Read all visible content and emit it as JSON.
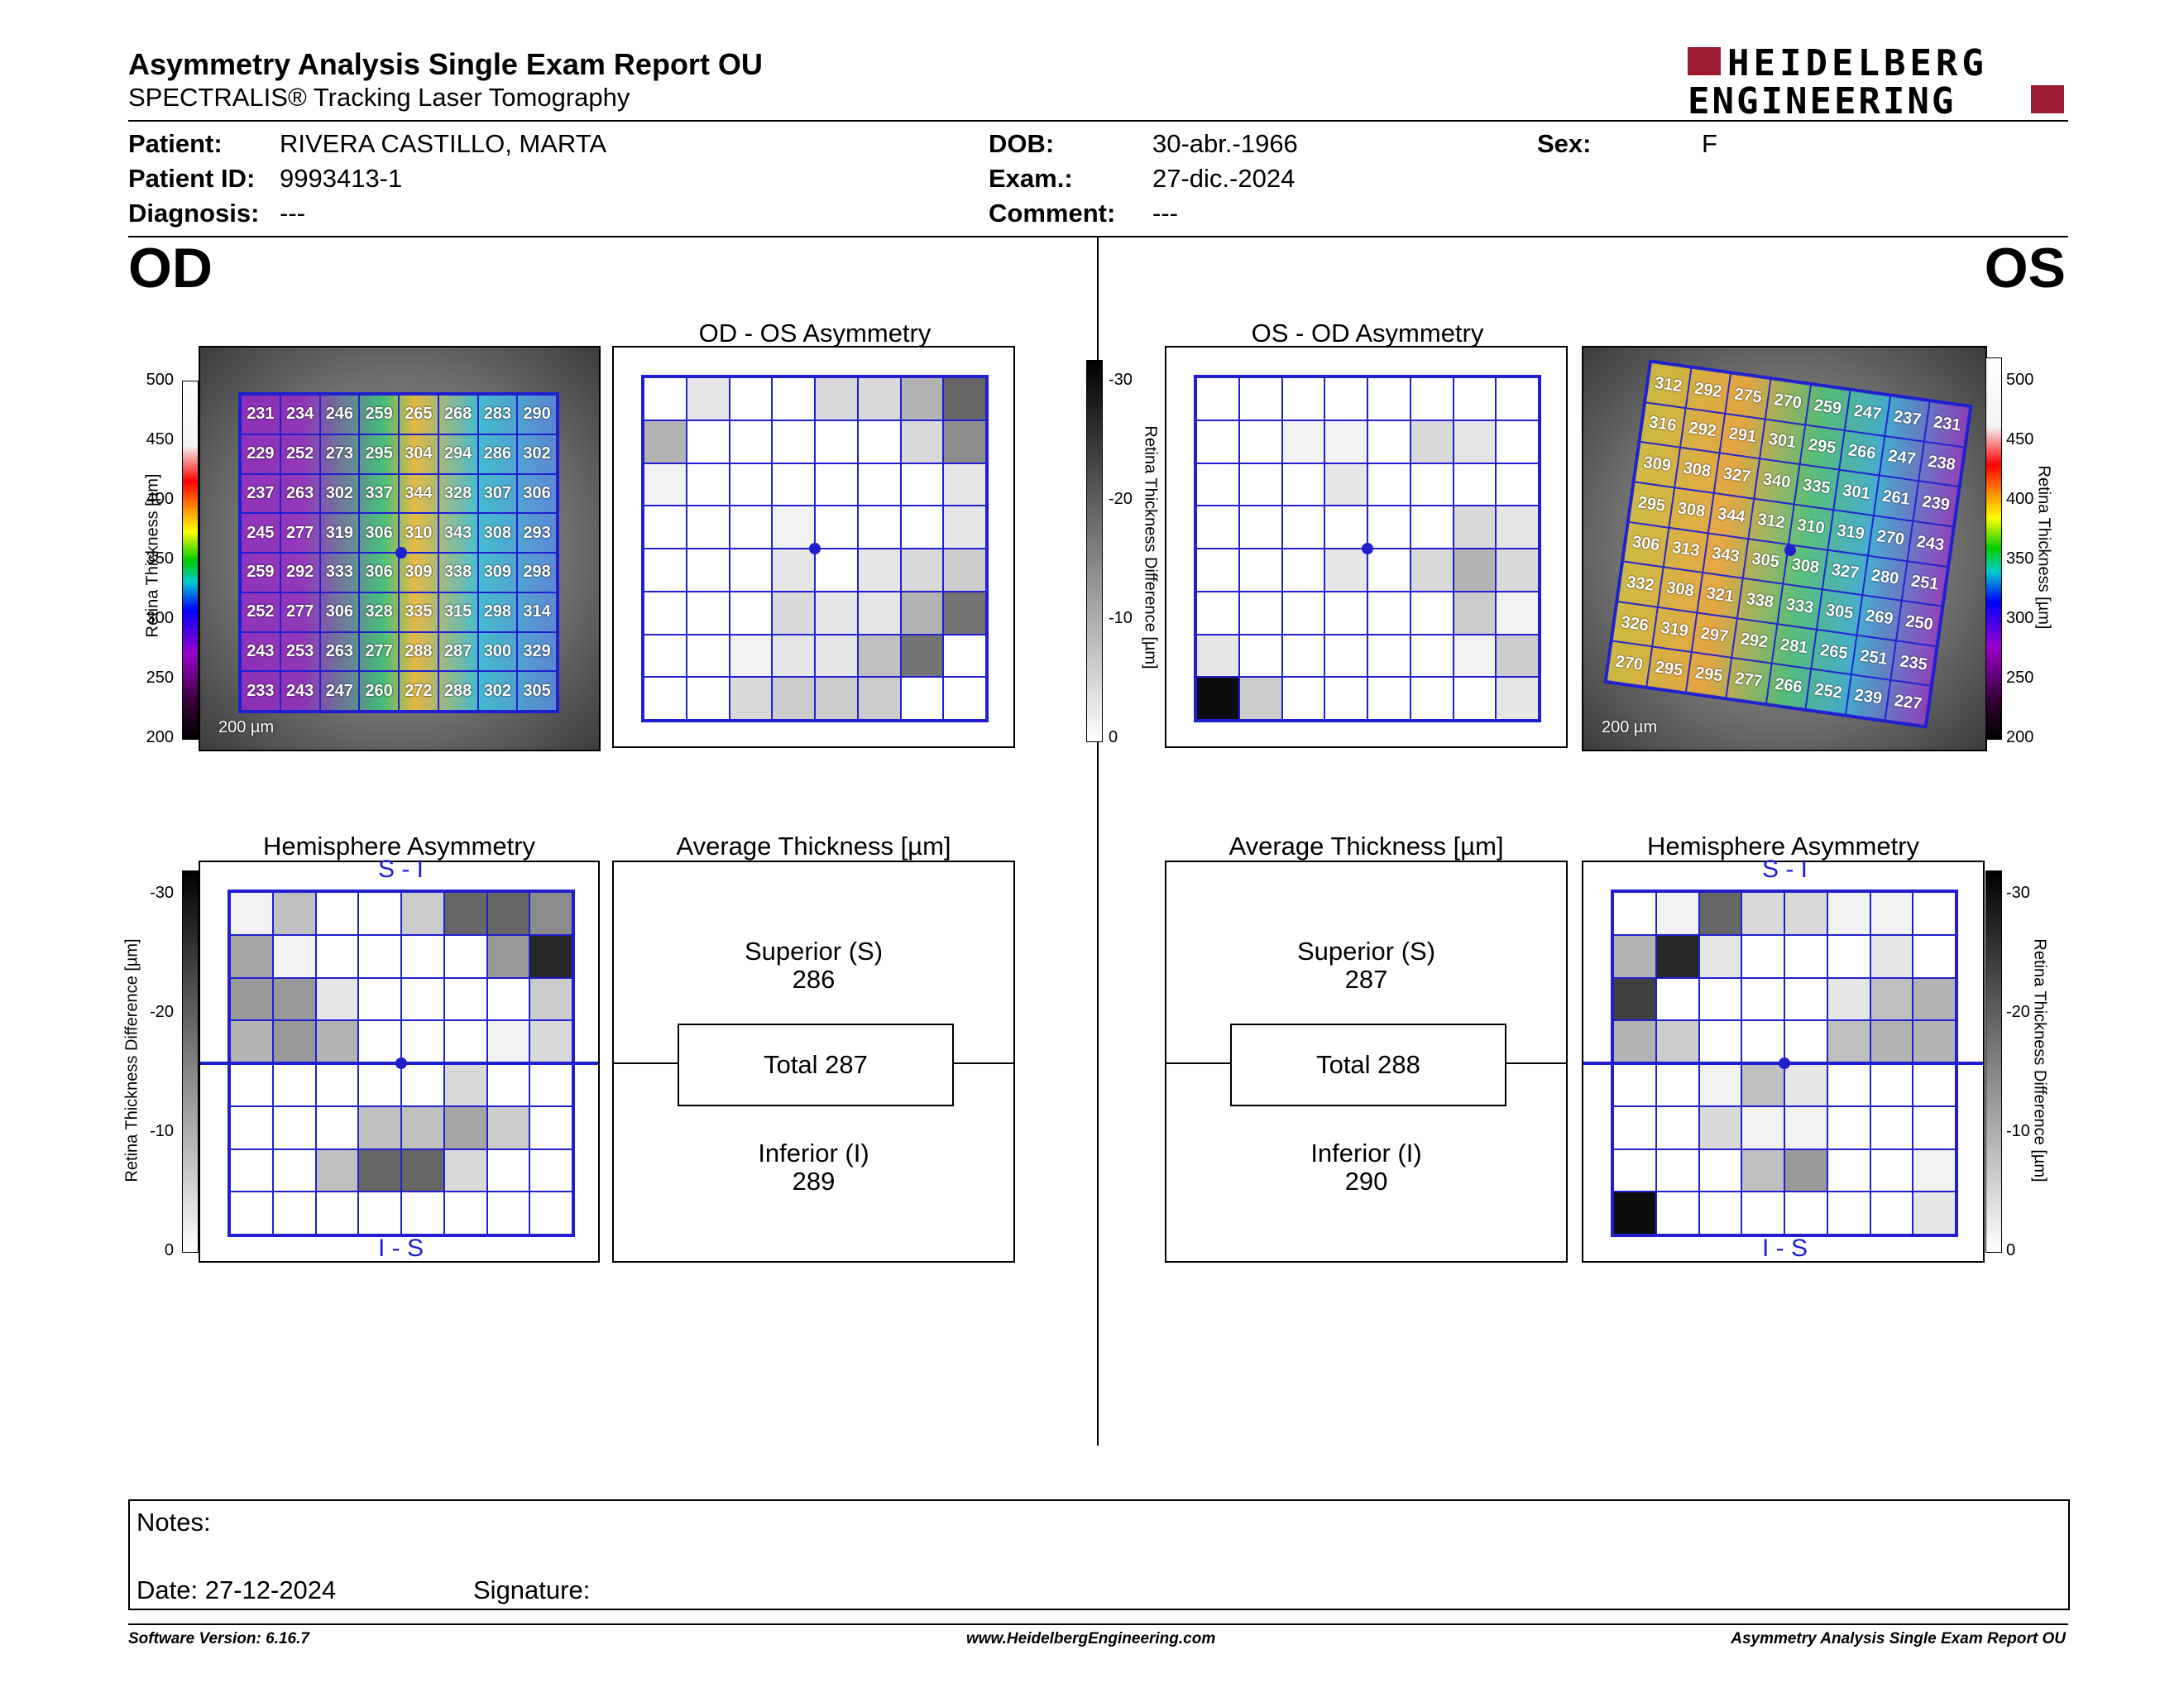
{
  "header": {
    "title": "Asymmetry Analysis Single Exam Report OU",
    "subtitle": "SPECTRALIS® Tracking Laser Tomography",
    "logo_line1": "HEIDELBERG",
    "logo_line2": "ENGINEERING",
    "brand_color": "#9b1b30"
  },
  "patient": {
    "patient_label": "Patient:",
    "patient_value": "RIVERA CASTILLO, MARTA",
    "id_label": "Patient ID:",
    "id_value": "9993413-1",
    "diagnosis_label": "Diagnosis:",
    "diagnosis_value": "---",
    "dob_label": "DOB:",
    "dob_value": "30-abr.-1966",
    "exam_label": "Exam.:",
    "exam_value": "27-dic.-2024",
    "comment_label": "Comment:",
    "comment_value": "---",
    "sex_label": "Sex:",
    "sex_value": "F"
  },
  "od": {
    "label": "OD",
    "asym_title": "OD - OS Asymmetry",
    "hemi_title": "Hemisphere Asymmetry",
    "avg_title": "Average Thickness [µm]",
    "si": "S - I",
    "is": "I - S",
    "superior_label": "Superior (S)",
    "superior_value": "286",
    "total": "Total 287",
    "inferior_label": "Inferior (I)",
    "inferior_value": "289",
    "scale": "200 µm",
    "thickness": [
      [
        231,
        234,
        246,
        259,
        265,
        268,
        283,
        290
      ],
      [
        229,
        252,
        273,
        295,
        304,
        294,
        286,
        302
      ],
      [
        237,
        263,
        302,
        337,
        344,
        328,
        307,
        306
      ],
      [
        245,
        277,
        319,
        306,
        310,
        343,
        308,
        293
      ],
      [
        259,
        292,
        333,
        306,
        309,
        338,
        309,
        298
      ],
      [
        252,
        277,
        306,
        328,
        335,
        315,
        298,
        314
      ],
      [
        243,
        253,
        263,
        277,
        288,
        287,
        300,
        329
      ],
      [
        233,
        243,
        247,
        260,
        272,
        288,
        302,
        305
      ]
    ],
    "asym_levels": [
      [
        0,
        0.1,
        0,
        0,
        0.15,
        0.15,
        0.3,
        0.6
      ],
      [
        0.3,
        0,
        0,
        0,
        0,
        0,
        0.15,
        0.45
      ],
      [
        0.05,
        0,
        0,
        0,
        0,
        0,
        0,
        0.1
      ],
      [
        0,
        0,
        0,
        0.05,
        0,
        0,
        0,
        0.1
      ],
      [
        0,
        0,
        0,
        0.1,
        0,
        0.1,
        0.15,
        0.2
      ],
      [
        0,
        0,
        0,
        0.15,
        0.1,
        0.1,
        0.3,
        0.55
      ],
      [
        0,
        0,
        0.05,
        0.1,
        0.1,
        0.25,
        0.55,
        0
      ],
      [
        0,
        0,
        0.15,
        0.2,
        0.2,
        0.2,
        0,
        0
      ]
    ],
    "hemi_levels": [
      [
        0.05,
        0.25,
        0,
        0,
        0.2,
        0.6,
        0.6,
        0.45
      ],
      [
        0.35,
        0.05,
        0,
        0,
        0,
        0,
        0.4,
        0.85
      ],
      [
        0.4,
        0.4,
        0.1,
        0,
        0,
        0,
        0,
        0.2
      ],
      [
        0.3,
        0.4,
        0.3,
        0,
        0,
        0,
        0.05,
        0.15
      ],
      [
        0,
        0,
        0,
        0,
        0,
        0.15,
        0,
        0
      ],
      [
        0,
        0,
        0,
        0.25,
        0.25,
        0.35,
        0.2,
        0
      ],
      [
        0,
        0,
        0.25,
        0.6,
        0.6,
        0.15,
        0,
        0
      ],
      [
        0,
        0,
        0,
        0,
        0,
        0,
        0,
        0
      ]
    ]
  },
  "os": {
    "label": "OS",
    "asym_title": "OS - OD Asymmetry",
    "hemi_title": "Hemisphere Asymmetry",
    "avg_title": "Average Thickness [µm]",
    "si": "S - I",
    "is": "I - S",
    "superior_label": "Superior (S)",
    "superior_value": "287",
    "total": "Total 288",
    "inferior_label": "Inferior (I)",
    "inferior_value": "290",
    "scale": "200 µm",
    "thickness": [
      [
        312,
        292,
        275,
        270,
        259,
        247,
        237,
        231
      ],
      [
        316,
        292,
        291,
        301,
        295,
        266,
        247,
        238
      ],
      [
        309,
        308,
        327,
        340,
        335,
        301,
        261,
        239
      ],
      [
        295,
        308,
        344,
        312,
        310,
        319,
        270,
        243
      ],
      [
        306,
        313,
        343,
        305,
        308,
        327,
        280,
        251
      ],
      [
        332,
        308,
        321,
        338,
        333,
        305,
        269,
        250
      ],
      [
        326,
        319,
        297,
        292,
        281,
        265,
        251,
        235
      ],
      [
        270,
        295,
        295,
        277,
        266,
        252,
        239,
        227
      ]
    ],
    "asym_levels": [
      [
        0,
        0,
        0,
        0,
        0,
        0,
        0,
        0
      ],
      [
        0,
        0,
        0.05,
        0.05,
        0,
        0.15,
        0.1,
        0
      ],
      [
        0,
        0,
        0,
        0.1,
        0,
        0,
        0,
        0
      ],
      [
        0,
        0,
        0,
        0,
        0,
        0,
        0.15,
        0.1
      ],
      [
        0,
        0,
        0,
        0.1,
        0,
        0.15,
        0.3,
        0.15
      ],
      [
        0,
        0,
        0,
        0,
        0,
        0,
        0.2,
        0.05
      ],
      [
        0.1,
        0,
        0,
        0,
        0,
        0,
        0.05,
        0.2
      ],
      [
        0.95,
        0.2,
        0,
        0,
        0,
        0,
        0,
        0.1
      ]
    ],
    "hemi_levels": [
      [
        0,
        0.05,
        0.6,
        0.15,
        0.15,
        0.05,
        0.05,
        0
      ],
      [
        0.3,
        0.85,
        0.1,
        0,
        0,
        0,
        0.1,
        0
      ],
      [
        0.75,
        0,
        0,
        0,
        0,
        0.1,
        0.25,
        0.3
      ],
      [
        0.3,
        0.2,
        0,
        0,
        0,
        0.25,
        0.3,
        0.3
      ],
      [
        0,
        0,
        0.05,
        0.25,
        0.1,
        0,
        0,
        0
      ],
      [
        0,
        0,
        0.15,
        0.05,
        0.05,
        0,
        0,
        0
      ],
      [
        0,
        0,
        0,
        0.25,
        0.4,
        0,
        0,
        0.05
      ],
      [
        0.95,
        0,
        0,
        0,
        0,
        0,
        0,
        0.1
      ]
    ]
  },
  "axes": {
    "thickness_label": "Retina Thickness [µm]",
    "thickness_ticks": [
      "500",
      "450",
      "400",
      "350",
      "300",
      "250",
      "200"
    ],
    "diff_label": "Retina Thickness Difference [µm]",
    "diff_ticks": [
      "-30",
      "-20",
      "-10",
      "0"
    ]
  },
  "notes": {
    "notes_label": "Notes:",
    "date_label": "Date: 27-12-2024",
    "signature_label": "Signature:"
  },
  "footer": {
    "version": "Software Version: 6.16.7",
    "url": "www.HeidelbergEngineering.com",
    "report": "Asymmetry Analysis Single Exam Report OU"
  }
}
